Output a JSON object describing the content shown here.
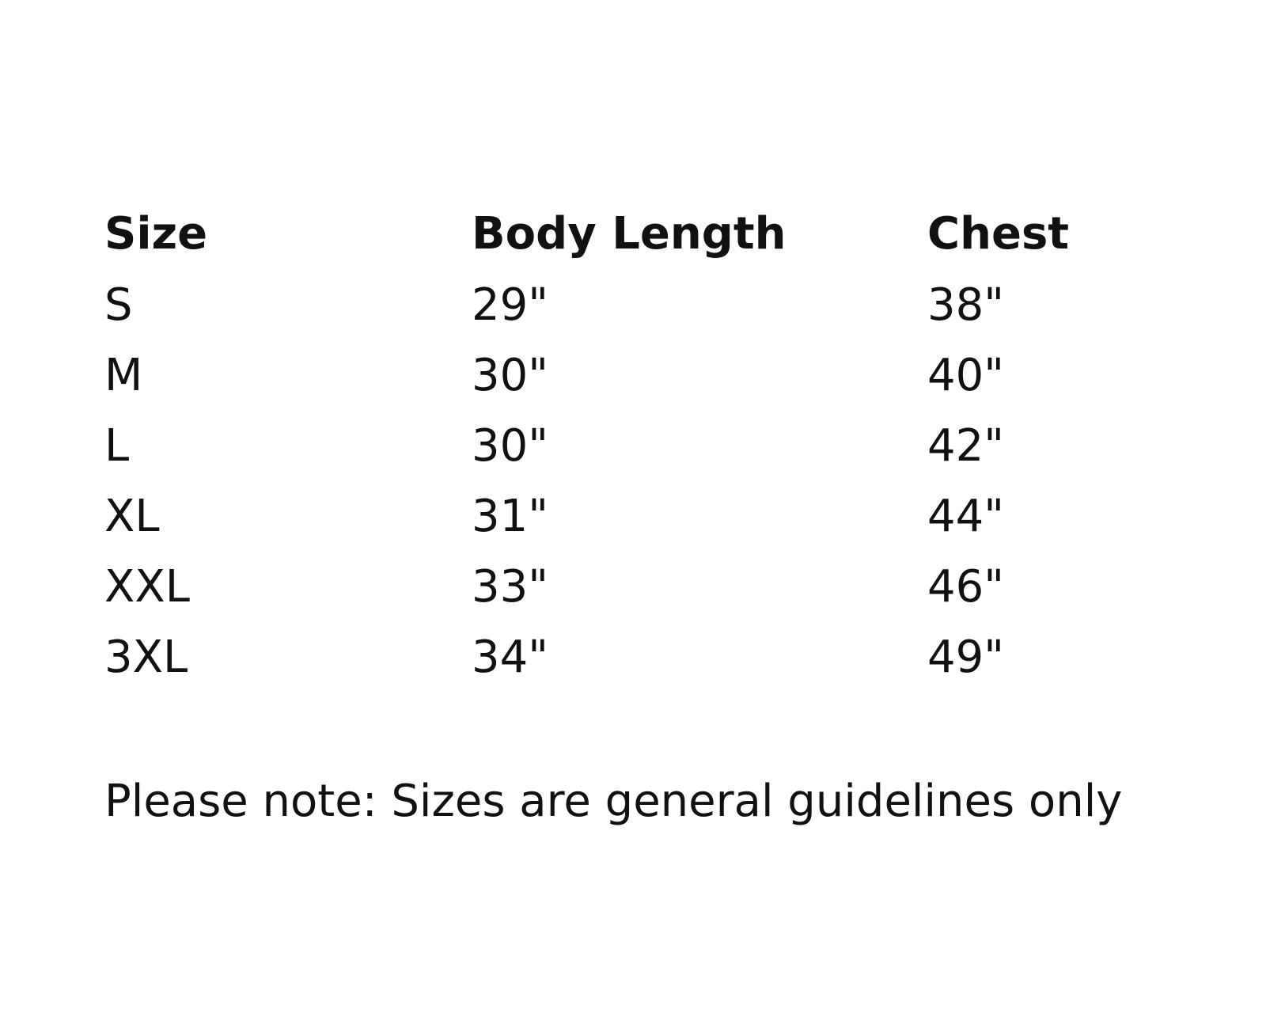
{
  "table": {
    "header": [
      "Size",
      "Body Length",
      "Chest"
    ],
    "rows": [
      [
        "S",
        "29\"",
        "38\""
      ],
      [
        "M",
        "30\"",
        "40\""
      ],
      [
        "L",
        "30\"",
        "42\""
      ],
      [
        "XL",
        "31\"",
        "44\""
      ],
      [
        "XXL",
        "33\"",
        "46\""
      ],
      [
        "3XL",
        "34\"",
        "49\""
      ]
    ]
  },
  "note": "Please note: Sizes are general guidelines only"
}
